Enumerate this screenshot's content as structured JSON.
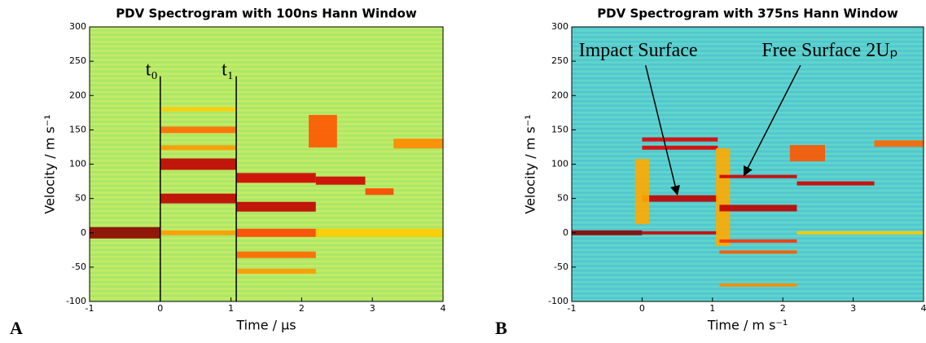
{
  "chart_data": [
    {
      "type": "heatmap",
      "panel_label": "A",
      "title": "PDV Spectrogram with 100ns Hann Window",
      "x_label": "Time / μs",
      "y_label": "Velocity / m s⁻¹",
      "xlim": [
        -1,
        4
      ],
      "ylim": [
        -100,
        300
      ],
      "xticks": [
        -1,
        0,
        1,
        2,
        3,
        4
      ],
      "yticks": [
        -100,
        -50,
        0,
        50,
        100,
        150,
        200,
        250,
        300
      ],
      "annotations": [
        "t₀",
        "t₁"
      ]
    },
    {
      "type": "heatmap",
      "panel_label": "B",
      "title": "PDV Spectrogram with 375ns Hann Window",
      "x_label": "Time / m s⁻¹",
      "y_label": "Velocity / m s⁻¹",
      "xlim": [
        -1,
        4
      ],
      "ylim": [
        -100,
        300
      ],
      "xticks": [
        -1,
        0,
        1,
        2,
        3,
        4
      ],
      "yticks": [
        -100,
        -50,
        0,
        50,
        100,
        150,
        200,
        250,
        300
      ],
      "annotations": [
        "Impact Surface",
        "Free Surface 2Uₚ"
      ]
    }
  ]
}
